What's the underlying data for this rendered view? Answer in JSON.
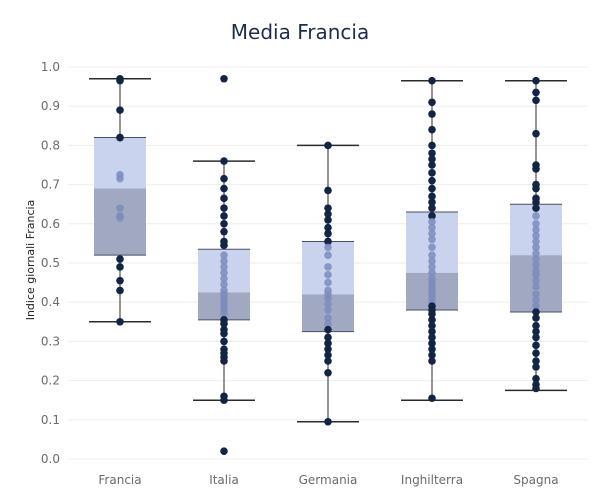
{
  "chart_data": {
    "type": "box",
    "title": "Media Francia",
    "xlabel": "",
    "ylabel": "Indice giornali Francia",
    "ylim": [
      0.0,
      1.0
    ],
    "yticks": [
      "0.0",
      "0.1",
      "0.2",
      "0.3",
      "0.4",
      "0.5",
      "0.6",
      "0.7",
      "0.8",
      "0.9",
      "1.0"
    ],
    "categories": [
      "Francia",
      "Italia",
      "Germania",
      "Inghilterra",
      "Spagna"
    ],
    "grid": true,
    "colors": {
      "box_upper": "#c9d3ee",
      "box_lower": "#a1a9c2",
      "points": "#132545",
      "points_in_box": "#7b8cbd",
      "whisker": "#2b2b2b",
      "grid": "#eeeeee"
    },
    "boxes": [
      {
        "category": "Francia",
        "min": 0.35,
        "q1": 0.52,
        "median": 0.69,
        "q3": 0.82,
        "max": 0.97,
        "points": [
          0.97,
          0.965,
          0.89,
          0.82,
          0.82,
          0.725,
          0.715,
          0.64,
          0.62,
          0.615,
          0.51,
          0.49,
          0.455,
          0.43,
          0.35
        ]
      },
      {
        "category": "Italia",
        "min": 0.15,
        "q1": 0.355,
        "median": 0.425,
        "q3": 0.535,
        "max": 0.76,
        "points": [
          0.97,
          0.76,
          0.715,
          0.69,
          0.665,
          0.64,
          0.62,
          0.6,
          0.58,
          0.555,
          0.545,
          0.52,
          0.505,
          0.49,
          0.475,
          0.46,
          0.445,
          0.43,
          0.42,
          0.41,
          0.4,
          0.39,
          0.38,
          0.37,
          0.355,
          0.345,
          0.33,
          0.32,
          0.3,
          0.28,
          0.27,
          0.26,
          0.25,
          0.16,
          0.15,
          0.02
        ]
      },
      {
        "category": "Germania",
        "min": 0.095,
        "q1": 0.325,
        "median": 0.42,
        "q3": 0.555,
        "max": 0.8,
        "points": [
          0.8,
          0.685,
          0.64,
          0.625,
          0.61,
          0.59,
          0.575,
          0.555,
          0.54,
          0.52,
          0.49,
          0.47,
          0.45,
          0.43,
          0.42,
          0.41,
          0.395,
          0.38,
          0.36,
          0.345,
          0.33,
          0.31,
          0.295,
          0.28,
          0.265,
          0.25,
          0.22,
          0.095
        ]
      },
      {
        "category": "Inghilterra",
        "min": 0.15,
        "q1": 0.38,
        "median": 0.475,
        "q3": 0.63,
        "max": 0.965,
        "points": [
          0.965,
          0.91,
          0.88,
          0.84,
          0.8,
          0.78,
          0.765,
          0.75,
          0.73,
          0.71,
          0.69,
          0.67,
          0.655,
          0.64,
          0.62,
          0.605,
          0.59,
          0.575,
          0.56,
          0.54,
          0.52,
          0.505,
          0.49,
          0.475,
          0.46,
          0.45,
          0.44,
          0.43,
          0.42,
          0.41,
          0.4,
          0.39,
          0.38,
          0.37,
          0.355,
          0.34,
          0.325,
          0.31,
          0.295,
          0.28,
          0.265,
          0.25,
          0.155
        ]
      },
      {
        "category": "Spagna",
        "min": 0.175,
        "q1": 0.375,
        "median": 0.52,
        "q3": 0.65,
        "max": 0.965,
        "points": [
          0.965,
          0.935,
          0.915,
          0.83,
          0.75,
          0.74,
          0.7,
          0.69,
          0.665,
          0.655,
          0.64,
          0.62,
          0.6,
          0.585,
          0.57,
          0.555,
          0.54,
          0.525,
          0.51,
          0.495,
          0.48,
          0.47,
          0.455,
          0.44,
          0.42,
          0.405,
          0.39,
          0.375,
          0.36,
          0.34,
          0.325,
          0.31,
          0.29,
          0.27,
          0.25,
          0.235,
          0.205,
          0.19,
          0.18
        ]
      }
    ]
  }
}
